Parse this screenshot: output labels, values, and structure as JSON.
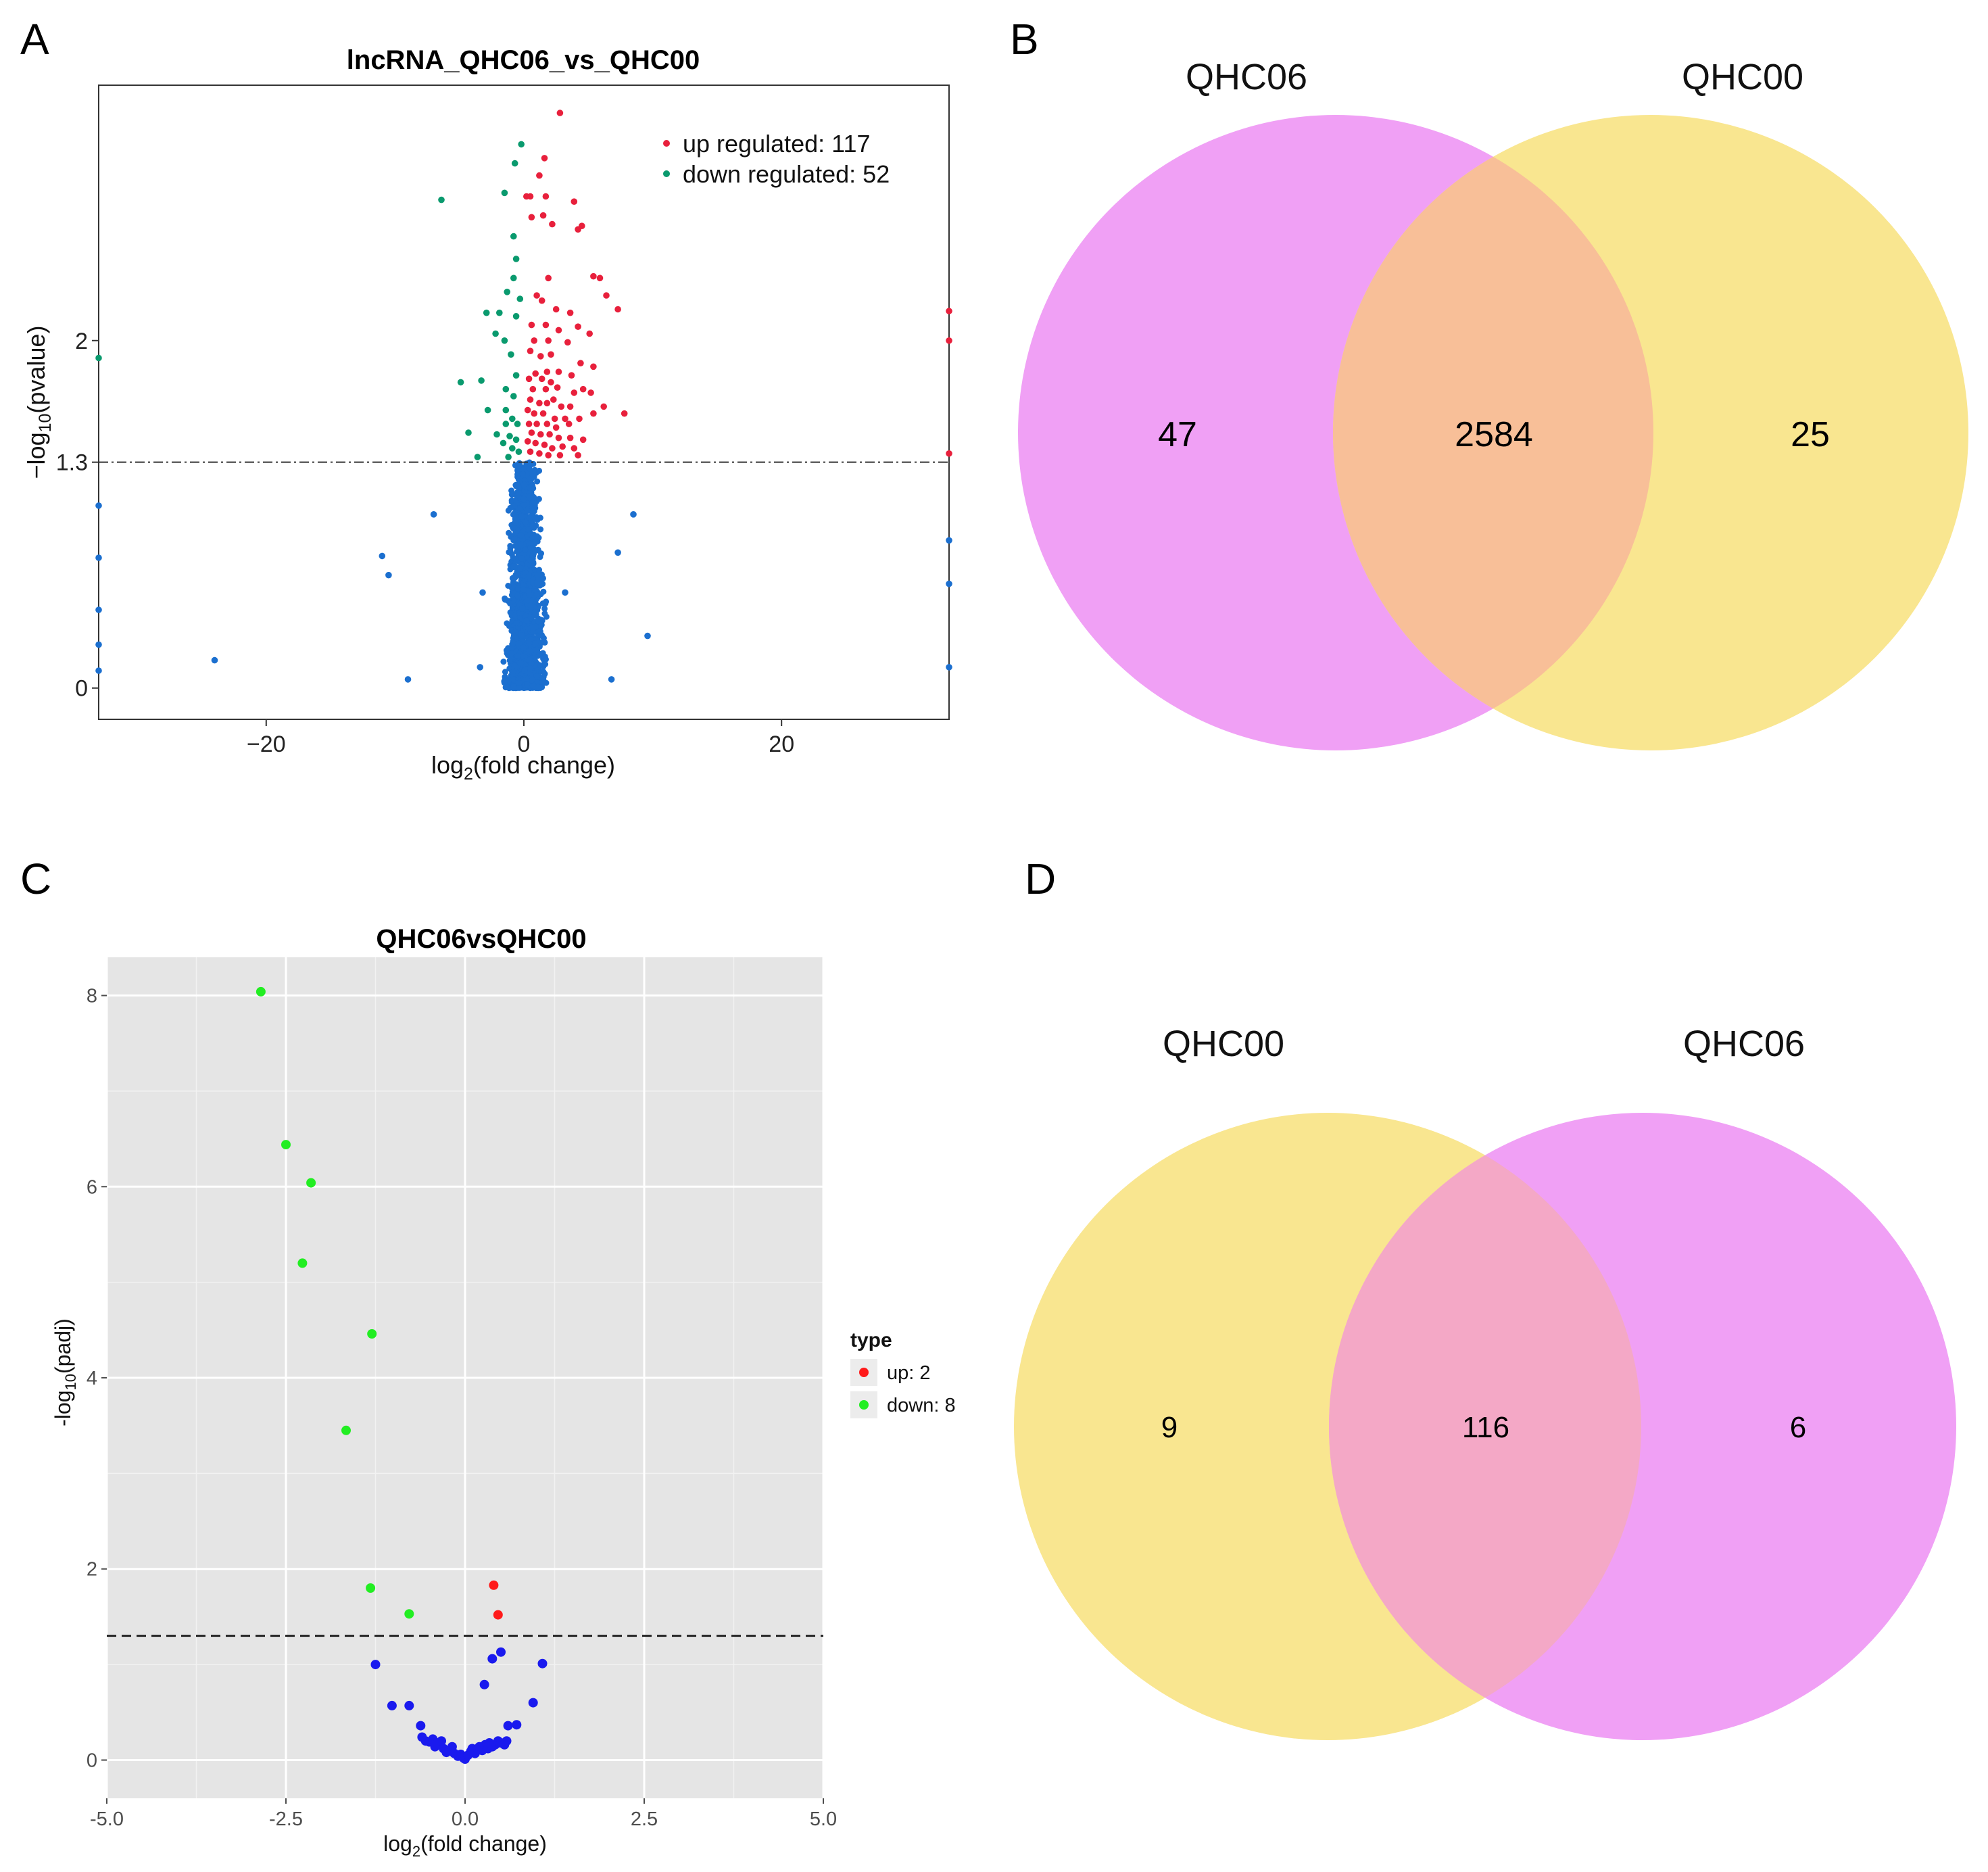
{
  "panels": {
    "A": {
      "letter": "A"
    },
    "B": {
      "letter": "B"
    },
    "C": {
      "letter": "C"
    },
    "D": {
      "letter": "D"
    }
  },
  "chart_data": [
    {
      "panel": "A",
      "type": "scatter",
      "title": "lncRNA_QHC06_vs_QHC00",
      "xlabel_main": "log",
      "xlabel_sub": "2",
      "xlabel_tail": "(fold change)",
      "ylabel_main": "−log",
      "ylabel_sub": "10",
      "ylabel_tail": "(pvalue)",
      "xlim": [
        -33,
        33
      ],
      "ylim": [
        -0.18,
        3.47
      ],
      "xticks": [
        {
          "v": -20,
          "label": "−20"
        },
        {
          "v": 0,
          "label": "0"
        },
        {
          "v": 20,
          "label": "20"
        }
      ],
      "yticks": [
        {
          "v": 0,
          "label": "0"
        },
        {
          "v": 1.3,
          "label": "1.3"
        },
        {
          "v": 2,
          "label": "2"
        }
      ],
      "threshold": 1.3,
      "legend": [
        {
          "label": "up regulated: 117",
          "color": "#e8203c"
        },
        {
          "label": "down regulated: 52",
          "color": "#0a9a6e"
        }
      ],
      "series": [
        {
          "name": "up regulated",
          "color": "#e8203c",
          "points": [
            [
              2.8,
              3.31
            ],
            [
              1.6,
              3.05
            ],
            [
              1.2,
              2.95
            ],
            [
              0.5,
              2.83
            ],
            [
              1.7,
              2.83
            ],
            [
              0.2,
              2.83
            ],
            [
              3.9,
              2.8
            ],
            [
              1.5,
              2.72
            ],
            [
              4.5,
              2.66
            ],
            [
              4.2,
              2.64
            ],
            [
              2.2,
              2.67
            ],
            [
              0.6,
              2.71
            ],
            [
              1.9,
              2.36
            ],
            [
              5.4,
              2.37
            ],
            [
              5.9,
              2.36
            ],
            [
              6.4,
              2.26
            ],
            [
              1.4,
              2.23
            ],
            [
              2.5,
              2.18
            ],
            [
              3.6,
              2.16
            ],
            [
              7.3,
              2.18
            ],
            [
              1.0,
              2.26
            ],
            [
              0.6,
              2.09
            ],
            [
              1.7,
              2.09
            ],
            [
              4.2,
              2.08
            ],
            [
              2.7,
              2.06
            ],
            [
              5.1,
              2.04
            ],
            [
              0.8,
              2.0
            ],
            [
              1.9,
              2.0
            ],
            [
              3.4,
              1.99
            ],
            [
              0.5,
              1.94
            ],
            [
              1.3,
              1.91
            ],
            [
              2.1,
              1.92
            ],
            [
              4.4,
              1.87
            ],
            [
              5.4,
              1.85
            ],
            [
              0.9,
              1.81
            ],
            [
              1.8,
              1.82
            ],
            [
              2.7,
              1.82
            ],
            [
              3.7,
              1.8
            ],
            [
              0.4,
              1.78
            ],
            [
              1.4,
              1.78
            ],
            [
              2.1,
              1.76
            ],
            [
              4.6,
              1.72
            ],
            [
              0.7,
              1.72
            ],
            [
              1.7,
              1.72
            ],
            [
              2.6,
              1.73
            ],
            [
              3.9,
              1.7
            ],
            [
              5.2,
              1.7
            ],
            [
              0.5,
              1.66
            ],
            [
              1.2,
              1.64
            ],
            [
              1.8,
              1.64
            ],
            [
              2.3,
              1.66
            ],
            [
              2.9,
              1.62
            ],
            [
              3.6,
              1.62
            ],
            [
              6.2,
              1.62
            ],
            [
              7.8,
              1.58
            ],
            [
              0.3,
              1.6
            ],
            [
              0.8,
              1.58
            ],
            [
              1.5,
              1.58
            ],
            [
              2.4,
              1.55
            ],
            [
              3.2,
              1.55
            ],
            [
              4.3,
              1.55
            ],
            [
              5.4,
              1.58
            ],
            [
              0.4,
              1.52
            ],
            [
              1.0,
              1.52
            ],
            [
              1.8,
              1.52
            ],
            [
              2.5,
              1.5
            ],
            [
              3.5,
              1.52
            ],
            [
              0.6,
              1.47
            ],
            [
              1.3,
              1.46
            ],
            [
              2.0,
              1.46
            ],
            [
              2.7,
              1.44
            ],
            [
              3.6,
              1.44
            ],
            [
              4.6,
              1.43
            ],
            [
              0.3,
              1.42
            ],
            [
              0.9,
              1.41
            ],
            [
              1.6,
              1.4
            ],
            [
              2.2,
              1.38
            ],
            [
              3.0,
              1.39
            ],
            [
              3.9,
              1.38
            ],
            [
              0.5,
              1.36
            ],
            [
              1.2,
              1.35
            ],
            [
              1.9,
              1.34
            ],
            [
              2.8,
              1.34
            ],
            [
              4.2,
              1.34
            ],
            [
              33,
              2.17
            ],
            [
              33,
              2.0
            ],
            [
              33,
              1.35
            ]
          ]
        },
        {
          "name": "down regulated",
          "color": "#0a9a6e",
          "points": [
            [
              -0.2,
              3.13
            ],
            [
              -0.7,
              3.02
            ],
            [
              -1.5,
              2.85
            ],
            [
              -6.4,
              2.81
            ],
            [
              -0.8,
              2.6
            ],
            [
              -0.6,
              2.47
            ],
            [
              -0.8,
              2.36
            ],
            [
              -1.3,
              2.28
            ],
            [
              -0.3,
              2.24
            ],
            [
              -2.9,
              2.16
            ],
            [
              -1.9,
              2.16
            ],
            [
              -0.6,
              2.14
            ],
            [
              -2.2,
              2.04
            ],
            [
              -1.5,
              2.0
            ],
            [
              -1.0,
              1.92
            ],
            [
              -4.9,
              1.76
            ],
            [
              -3.3,
              1.77
            ],
            [
              -0.6,
              1.8
            ],
            [
              -1.4,
              1.72
            ],
            [
              -0.8,
              1.68
            ],
            [
              -2.8,
              1.6
            ],
            [
              -1.4,
              1.6
            ],
            [
              -0.9,
              1.55
            ],
            [
              -0.5,
              1.52
            ],
            [
              -1.4,
              1.52
            ],
            [
              -4.3,
              1.47
            ],
            [
              -2.1,
              1.46
            ],
            [
              -1.1,
              1.45
            ],
            [
              -0.6,
              1.43
            ],
            [
              -1.6,
              1.41
            ],
            [
              -0.9,
              1.38
            ],
            [
              -0.4,
              1.36
            ],
            [
              -1.2,
              1.33
            ],
            [
              -3.6,
              1.33
            ],
            [
              -33,
              1.9
            ]
          ]
        },
        {
          "name": "not significant",
          "color": "#1b6fcf",
          "points": [
            [
              -24,
              0.16
            ],
            [
              -11,
              0.76
            ],
            [
              -10.5,
              0.65
            ],
            [
              -9,
              0.05
            ],
            [
              -7,
              1.0
            ],
            [
              -3.4,
              0.12
            ],
            [
              8.5,
              1.0
            ],
            [
              9.6,
              0.3
            ],
            [
              6.8,
              0.05
            ],
            [
              7.3,
              0.78
            ],
            [
              -33,
              1.05
            ],
            [
              -33,
              0.75
            ],
            [
              -33,
              0.45
            ],
            [
              -33,
              0.25
            ],
            [
              -33,
              0.1
            ],
            [
              33,
              0.85
            ],
            [
              33,
              0.6
            ],
            [
              33,
              0.12
            ],
            [
              -3.2,
              0.55
            ],
            [
              3.2,
              0.55
            ]
          ]
        }
      ],
      "cloud": {
        "color": "#1b6fcf",
        "xmin": -4.0,
        "xmax": 4.2,
        "ymin": 0.0,
        "ymax": 1.3
      }
    },
    {
      "panel": "B",
      "type": "venn",
      "sets": [
        {
          "label": "QHC06",
          "color": "#f0a0f5"
        },
        {
          "label": "QHC00",
          "color": "#f9e690"
        }
      ],
      "overlap_color": "#f8bf98",
      "counts": {
        "left_only": "47",
        "both": "2584",
        "right_only": "25"
      }
    },
    {
      "panel": "C",
      "type": "scatter",
      "title": "QHC06vsQHC00",
      "xlabel_main": "log",
      "xlabel_sub": "2",
      "xlabel_tail": "(fold change)",
      "ylabel_main": "-log",
      "ylabel_sub": "10",
      "ylabel_tail": "(padj)",
      "xlim": [
        -5.0,
        5.0
      ],
      "ylim": [
        -0.4,
        8.4
      ],
      "xticks": [
        {
          "v": -5.0,
          "label": "-5.0"
        },
        {
          "v": -2.5,
          "label": "-2.5"
        },
        {
          "v": 0.0,
          "label": "0.0"
        },
        {
          "v": 2.5,
          "label": "2.5"
        },
        {
          "v": 5.0,
          "label": "5.0"
        }
      ],
      "yticks": [
        {
          "v": 0,
          "label": "0"
        },
        {
          "v": 2,
          "label": "2"
        },
        {
          "v": 4,
          "label": "4"
        },
        {
          "v": 6,
          "label": "6"
        },
        {
          "v": 8,
          "label": "8"
        }
      ],
      "threshold": 1.3,
      "legend_title": "type",
      "legend": [
        {
          "label": "up: 2",
          "color": "#ff1a1a"
        },
        {
          "label": "down: 8",
          "color": "#22ee22"
        }
      ],
      "series": [
        {
          "name": "up",
          "color": "#ff1a1a",
          "points": [
            [
              0.4,
              1.83
            ],
            [
              0.46,
              1.52
            ]
          ]
        },
        {
          "name": "down",
          "color": "#22ee22",
          "points": [
            [
              -2.85,
              8.04
            ],
            [
              -2.5,
              6.44
            ],
            [
              -2.15,
              6.04
            ],
            [
              -2.27,
              5.2
            ],
            [
              -1.3,
              4.46
            ],
            [
              -1.66,
              3.45
            ],
            [
              -1.32,
              1.8
            ],
            [
              -0.78,
              1.53
            ]
          ]
        },
        {
          "name": "not significant",
          "color": "#1a1aee",
          "points": [
            [
              -1.25,
              1.0
            ],
            [
              -1.02,
              0.57
            ],
            [
              -0.78,
              0.57
            ],
            [
              -0.62,
              0.36
            ],
            [
              -0.6,
              0.24
            ],
            [
              -0.55,
              0.2
            ],
            [
              -0.5,
              0.19
            ],
            [
              -0.45,
              0.22
            ],
            [
              -0.42,
              0.14
            ],
            [
              -0.38,
              0.18
            ],
            [
              -0.33,
              0.2
            ],
            [
              -0.3,
              0.12
            ],
            [
              -0.26,
              0.08
            ],
            [
              -0.22,
              0.1
            ],
            [
              -0.18,
              0.14
            ],
            [
              -0.15,
              0.07
            ],
            [
              -0.1,
              0.04
            ],
            [
              -0.06,
              0.06
            ],
            [
              -0.02,
              0.02
            ],
            [
              0.0,
              0.01
            ],
            [
              0.04,
              0.05
            ],
            [
              0.08,
              0.09
            ],
            [
              0.1,
              0.12
            ],
            [
              0.14,
              0.07
            ],
            [
              0.18,
              0.11
            ],
            [
              0.2,
              0.14
            ],
            [
              0.24,
              0.1
            ],
            [
              0.28,
              0.16
            ],
            [
              0.32,
              0.12
            ],
            [
              0.34,
              0.18
            ],
            [
              0.38,
              0.14
            ],
            [
              0.42,
              0.16
            ],
            [
              0.46,
              0.2
            ],
            [
              0.5,
              0.18
            ],
            [
              0.55,
              0.16
            ],
            [
              0.58,
              0.2
            ],
            [
              0.6,
              0.36
            ],
            [
              0.72,
              0.37
            ],
            [
              0.95,
              0.6
            ],
            [
              0.27,
              0.79
            ],
            [
              0.38,
              1.06
            ],
            [
              0.5,
              1.13
            ],
            [
              1.08,
              1.01
            ]
          ]
        }
      ]
    },
    {
      "panel": "D",
      "type": "venn",
      "sets": [
        {
          "label": "QHC00",
          "color": "#f9e690"
        },
        {
          "label": "QHC06",
          "color": "#f0a0f5"
        }
      ],
      "overlap_color": "#f4a8c6",
      "counts": {
        "left_only": "9",
        "both": "116",
        "right_only": "6"
      }
    }
  ]
}
